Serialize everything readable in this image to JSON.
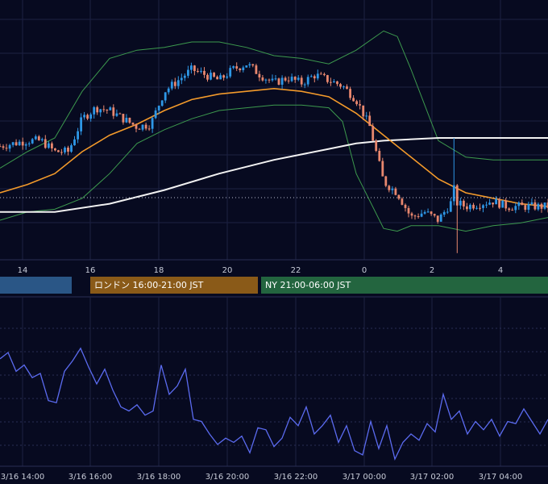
{
  "colors": {
    "background": "#070a20",
    "grid": "#1c2142",
    "candle_up": "#2e97e6",
    "candle_down": "#e8876e",
    "ma_short": "#f39a2b",
    "ma_long": "#f2f2f2",
    "bollinger": "#3d9a4e",
    "oscillator": "#5b6bf0",
    "session_tokyo": "#2a5686",
    "session_london": "#8a5a18",
    "session_ny": "#23653f",
    "axis_text": "#c8ccd8"
  },
  "sessions": [
    {
      "id": "tokyo",
      "label": ""
    },
    {
      "id": "london",
      "label": "ロンドン 16:00-21:00 JST"
    },
    {
      "id": "ny",
      "label": "NY 21:00-06:00 JST"
    }
  ],
  "price_axis_ticks": [
    "14",
    "16",
    "18",
    "20",
    "22",
    "0",
    "2",
    "4"
  ],
  "oscillator_axis_ticks": [
    "3/16 14:00",
    "3/16 16:00",
    "3/16 18:00",
    "3/16 20:00",
    "3/16 22:00",
    "3/17 00:00",
    "3/17 02:00",
    "3/17 04:00"
  ],
  "chart_data": [
    {
      "type": "candlestick",
      "title": "",
      "x_ticks": [
        "14",
        "16",
        "18",
        "20",
        "22",
        "0",
        "2",
        "4"
      ],
      "y_range": [
        0,
        100
      ],
      "grid": true,
      "overlays": [
        {
          "name": "",
          "kind": "moving_average_short",
          "color": "#f39a2b"
        },
        {
          "name": "",
          "kind": "moving_average_long",
          "color": "#f2f2f2"
        },
        {
          "name": "",
          "kind": "bollinger_bands",
          "color": "#3d9a4e"
        }
      ],
      "price_path": [
        [
          0,
          62
        ],
        [
          1,
          63
        ],
        [
          2,
          64
        ],
        [
          3,
          64
        ],
        [
          4,
          60
        ],
        [
          5,
          60
        ],
        [
          6,
          72
        ],
        [
          7,
          76
        ],
        [
          8,
          75
        ],
        [
          9,
          72
        ],
        [
          10,
          69
        ],
        [
          11,
          70
        ],
        [
          12,
          82
        ],
        [
          13,
          86
        ],
        [
          14,
          90
        ],
        [
          15,
          88
        ],
        [
          16,
          86
        ],
        [
          17,
          90
        ],
        [
          18,
          92
        ],
        [
          19,
          88
        ],
        [
          20,
          85
        ],
        [
          21,
          87
        ],
        [
          22,
          85
        ],
        [
          23,
          88
        ],
        [
          24,
          86
        ],
        [
          25,
          84
        ],
        [
          26,
          79
        ],
        [
          27,
          69
        ],
        [
          28,
          49
        ],
        [
          29,
          45
        ],
        [
          30,
          36
        ],
        [
          31,
          38
        ],
        [
          32,
          35
        ],
        [
          33,
          42
        ],
        [
          34,
          40
        ],
        [
          35,
          41
        ],
        [
          36,
          42
        ],
        [
          37,
          40
        ],
        [
          38,
          40
        ],
        [
          39,
          40
        ],
        [
          40,
          40
        ]
      ],
      "ma_short_path": [
        [
          0,
          45
        ],
        [
          2,
          48
        ],
        [
          4,
          52
        ],
        [
          6,
          60
        ],
        [
          8,
          66
        ],
        [
          10,
          70
        ],
        [
          12,
          75
        ],
        [
          14,
          79
        ],
        [
          16,
          81
        ],
        [
          18,
          82
        ],
        [
          20,
          83
        ],
        [
          22,
          82
        ],
        [
          24,
          80
        ],
        [
          26,
          74
        ],
        [
          28,
          66
        ],
        [
          30,
          58
        ],
        [
          32,
          50
        ],
        [
          34,
          45
        ],
        [
          36,
          43
        ],
        [
          38,
          41
        ],
        [
          40,
          40
        ]
      ],
      "ma_long_path": [
        [
          0,
          38
        ],
        [
          4,
          38
        ],
        [
          8,
          41
        ],
        [
          12,
          46
        ],
        [
          16,
          52
        ],
        [
          20,
          57
        ],
        [
          24,
          61
        ],
        [
          26,
          63
        ],
        [
          28,
          64
        ],
        [
          32,
          65
        ],
        [
          36,
          65
        ],
        [
          40,
          65
        ]
      ],
      "bollinger_upper": [
        [
          0,
          54
        ],
        [
          2,
          60
        ],
        [
          4,
          65
        ],
        [
          6,
          82
        ],
        [
          7,
          88
        ],
        [
          8,
          94
        ],
        [
          10,
          97
        ],
        [
          12,
          98
        ],
        [
          14,
          100
        ],
        [
          16,
          100
        ],
        [
          18,
          98
        ],
        [
          20,
          95
        ],
        [
          22,
          94
        ],
        [
          24,
          92
        ],
        [
          26,
          97
        ],
        [
          28,
          104
        ],
        [
          29,
          102
        ],
        [
          30,
          90
        ],
        [
          32,
          64
        ],
        [
          34,
          58
        ],
        [
          36,
          57
        ],
        [
          38,
          57
        ],
        [
          40,
          57
        ]
      ],
      "bollinger_lower": [
        [
          0,
          35
        ],
        [
          2,
          38
        ],
        [
          4,
          39
        ],
        [
          6,
          43
        ],
        [
          8,
          52
        ],
        [
          10,
          63
        ],
        [
          12,
          68
        ],
        [
          14,
          72
        ],
        [
          16,
          75
        ],
        [
          18,
          76
        ],
        [
          20,
          77
        ],
        [
          22,
          77
        ],
        [
          24,
          76
        ],
        [
          25,
          71
        ],
        [
          26,
          52
        ],
        [
          28,
          32
        ],
        [
          29,
          31
        ],
        [
          30,
          33
        ],
        [
          32,
          33
        ],
        [
          34,
          31
        ],
        [
          36,
          33
        ],
        [
          38,
          34
        ],
        [
          40,
          36
        ]
      ]
    },
    {
      "type": "line",
      "title": "",
      "x_ticks": [
        "3/16 14:00",
        "3/16 16:00",
        "3/16 18:00",
        "3/16 20:00",
        "3/16 22:00",
        "3/17 00:00",
        "3/17 02:00",
        "3/17 04:00"
      ],
      "y_range": [
        0,
        100
      ],
      "grid": true,
      "series": [
        {
          "name": "",
          "points": [
            [
              0,
              58
            ],
            [
              1,
              61
            ],
            [
              2,
              52
            ],
            [
              3,
              55
            ],
            [
              4,
              49
            ],
            [
              5,
              51
            ],
            [
              6,
              38
            ],
            [
              7,
              37
            ],
            [
              8,
              52
            ],
            [
              9,
              57
            ],
            [
              10,
              63
            ],
            [
              11,
              54
            ],
            [
              12,
              46
            ],
            [
              13,
              53
            ],
            [
              14,
              43
            ],
            [
              15,
              35
            ],
            [
              16,
              33
            ],
            [
              17,
              36
            ],
            [
              18,
              31
            ],
            [
              19,
              33
            ],
            [
              20,
              55
            ],
            [
              21,
              41
            ],
            [
              22,
              45
            ],
            [
              23,
              53
            ],
            [
              24,
              29
            ],
            [
              25,
              28
            ],
            [
              26,
              22
            ],
            [
              27,
              17
            ],
            [
              28,
              20
            ],
            [
              29,
              18
            ],
            [
              30,
              21
            ],
            [
              31,
              13
            ],
            [
              32,
              25
            ],
            [
              33,
              24
            ],
            [
              34,
              16
            ],
            [
              35,
              20
            ],
            [
              36,
              30
            ],
            [
              37,
              26
            ],
            [
              38,
              35
            ],
            [
              39,
              22
            ],
            [
              40,
              26
            ],
            [
              41,
              31
            ],
            [
              42,
              18
            ],
            [
              43,
              26
            ],
            [
              44,
              14
            ],
            [
              45,
              12
            ],
            [
              46,
              28
            ],
            [
              47,
              15
            ],
            [
              48,
              26
            ],
            [
              49,
              10
            ],
            [
              50,
              18
            ],
            [
              51,
              22
            ],
            [
              52,
              19
            ],
            [
              53,
              27
            ],
            [
              54,
              23
            ],
            [
              55,
              41
            ],
            [
              56,
              29
            ],
            [
              57,
              33
            ],
            [
              58,
              22
            ],
            [
              59,
              28
            ],
            [
              60,
              24
            ],
            [
              61,
              29
            ],
            [
              62,
              21
            ],
            [
              63,
              28
            ],
            [
              64,
              27
            ],
            [
              65,
              34
            ],
            [
              66,
              28
            ],
            [
              67,
              22
            ],
            [
              68,
              29
            ]
          ]
        }
      ]
    }
  ]
}
